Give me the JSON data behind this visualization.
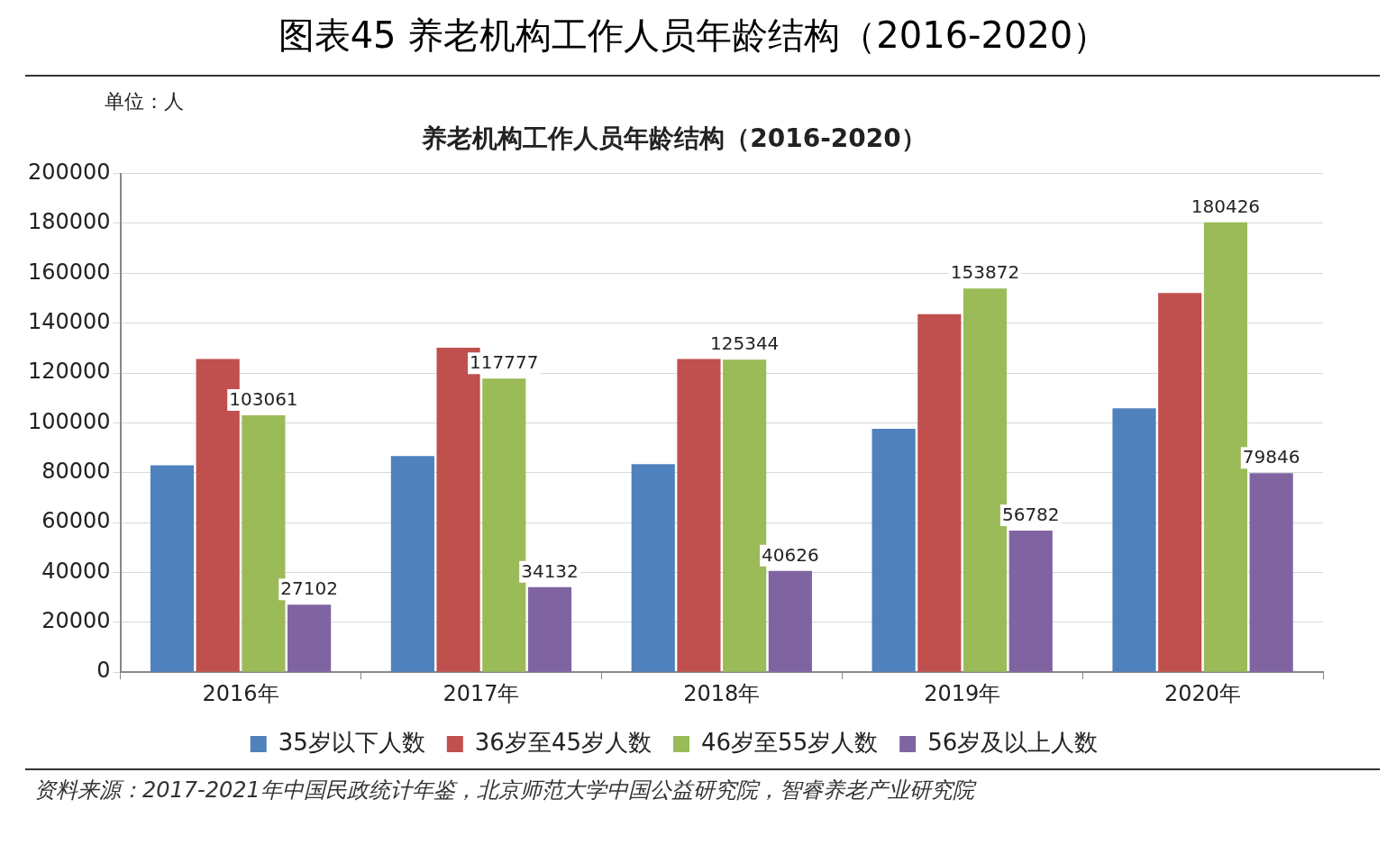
{
  "chart_data": {
    "type": "bar",
    "title": "图表45 养老机构工作人员年龄结构（2016-2020）",
    "subtitle": "养老机构工作人员年龄结构（2016-2020）",
    "ylabel": "单位：人",
    "categories": [
      "2016年",
      "2017年",
      "2018年",
      "2019年",
      "2020年"
    ],
    "series": [
      {
        "name": "35岁以下人数",
        "color": "#4f81bd",
        "values": [
          83000,
          86700,
          83400,
          97600,
          105800
        ]
      },
      {
        "name": "36岁至45岁人数",
        "color": "#c0504d",
        "values": [
          125600,
          130100,
          125600,
          143600,
          152100
        ]
      },
      {
        "name": "46岁至55岁人数",
        "color": "#9bbb59",
        "values": [
          103061,
          117777,
          125344,
          153872,
          180426
        ],
        "value_labels": [
          "103061",
          "117777",
          "125344",
          "153872",
          "180426"
        ]
      },
      {
        "name": "56岁及以上人数",
        "color": "#8064a2",
        "values": [
          27102,
          34132,
          40626,
          56782,
          79846
        ],
        "value_labels": [
          "27102",
          "34132",
          "40626",
          "56782",
          "79846"
        ]
      }
    ],
    "ylim": [
      0,
      200000
    ],
    "yticks": [
      0,
      20000,
      40000,
      60000,
      80000,
      100000,
      120000,
      140000,
      160000,
      180000,
      200000
    ],
    "grid": "y",
    "legend": "bottom",
    "annotations": [
      "资料来源：2017-2021年中国民政统计年鉴，北京师范大学中国公益研究院，智睿养老产业研究院"
    ]
  }
}
